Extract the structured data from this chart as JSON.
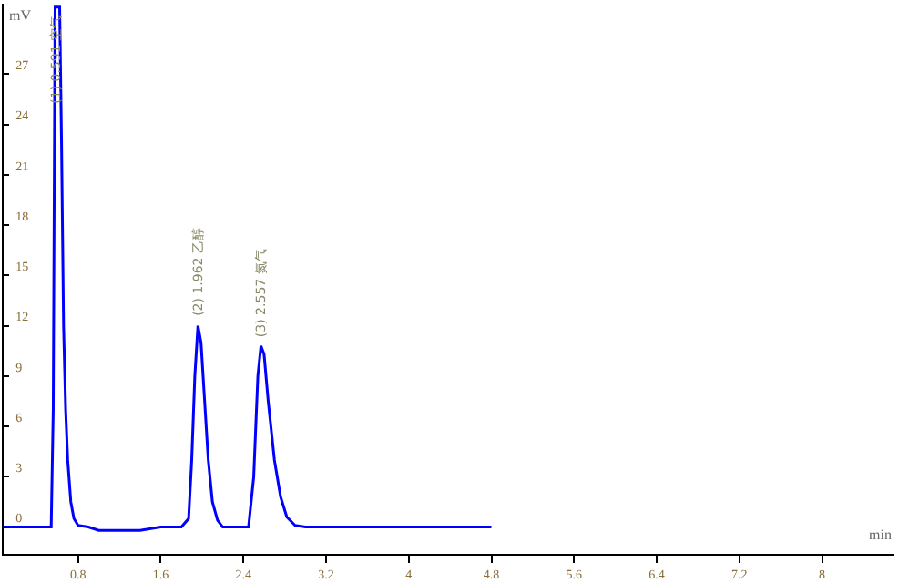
{
  "chart_data": {
    "type": "line",
    "xlabel": "min",
    "ylabel": "mV",
    "x": [
      0.08,
      0.5,
      0.54,
      0.56,
      0.578,
      0.622,
      0.64,
      0.66,
      0.68,
      0.7,
      0.73,
      0.76,
      0.8,
      0.9,
      1.0,
      1.4,
      1.6,
      1.8,
      1.87,
      1.9,
      1.93,
      1.96,
      1.99,
      2.02,
      2.06,
      2.1,
      2.15,
      2.2,
      2.45,
      2.5,
      2.54,
      2.57,
      2.6,
      2.64,
      2.7,
      2.76,
      2.82,
      2.9,
      3.0,
      4.8
    ],
    "series": [
      {
        "color": "#0000ff",
        "values": [
          0,
          0,
          0,
          7,
          31,
          31,
          23,
          12,
          7,
          4,
          1.5,
          0.5,
          0.1,
          0,
          -0.2,
          -0.2,
          0,
          0,
          0.5,
          4,
          9,
          12,
          11,
          8,
          4,
          1.5,
          0.4,
          0,
          0,
          3,
          9,
          10.8,
          10.3,
          7.5,
          4,
          1.8,
          0.6,
          0.1,
          0,
          0
        ]
      }
    ],
    "xlim": [
      0.08,
      8.7
    ],
    "ylim": [
      -1.6,
      31.2
    ],
    "xticks": [
      0.8,
      1.6,
      2.4,
      3.2,
      4,
      4.8,
      5.6,
      6.4,
      7.2,
      8
    ],
    "yticks": [
      0,
      3,
      6,
      9,
      12,
      15,
      18,
      21,
      24,
      27
    ],
    "annotations": [
      {
        "text": "(1) 0.591 空气",
        "x": 0.6
      },
      {
        "text": "(2) 1.962 乙醇",
        "x": 1.96,
        "y": 12
      },
      {
        "text": "(3) 2.557 氮气",
        "x": 2.57,
        "y": 10.8
      }
    ],
    "grid": false,
    "marker": "none",
    "line_style": "solid"
  }
}
